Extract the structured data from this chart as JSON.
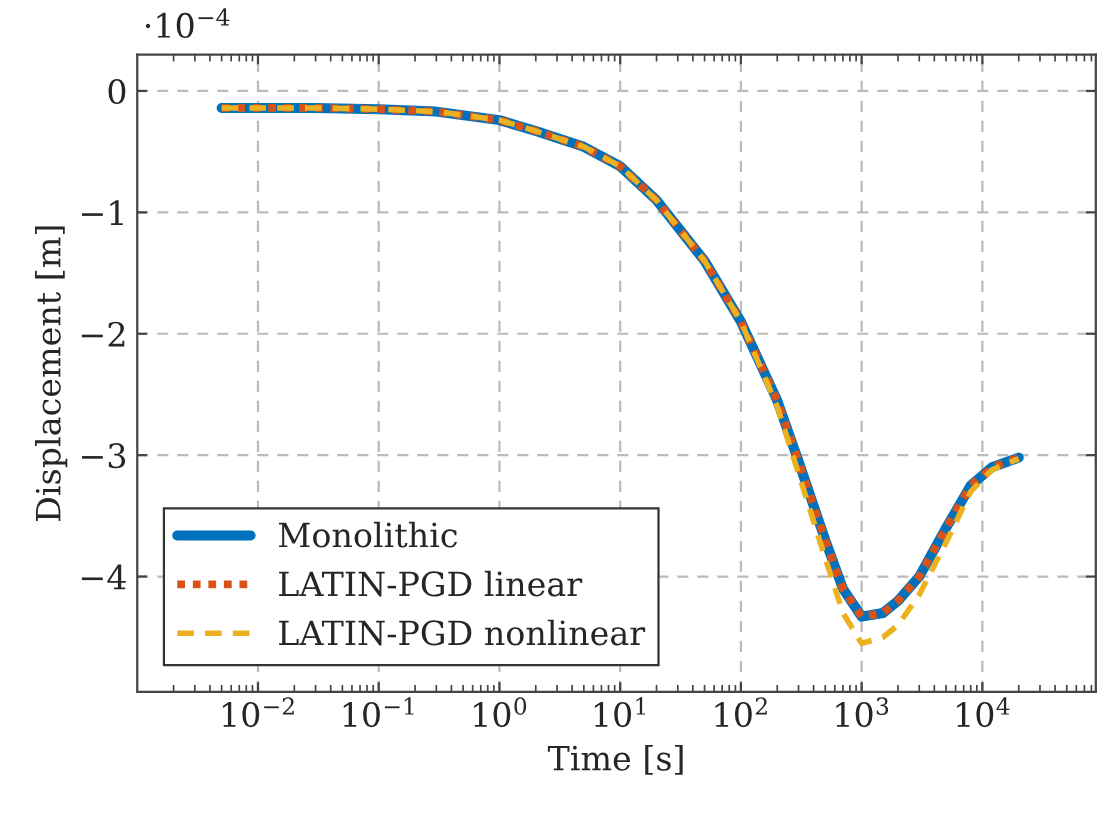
{
  "chart_data": {
    "type": "line",
    "xlabel": "Time [s]",
    "ylabel": "Displacement [m]",
    "annotations": [
      "·10$^{−4}$"
    ],
    "x": [
      0.005,
      0.01,
      0.03,
      0.1,
      0.3,
      1,
      2,
      5,
      10,
      20,
      50,
      100,
      200,
      300,
      500,
      700,
      1000,
      1500,
      2000,
      3000,
      5000,
      8000,
      12000,
      20000
    ],
    "series": [
      {
        "name": "Monolithic",
        "color": "#0072bd",
        "line_style": "solid",
        "values": [
          -0.14,
          -0.14,
          -0.14,
          -0.15,
          -0.17,
          -0.24,
          -0.33,
          -0.46,
          -0.62,
          -0.9,
          -1.4,
          -1.9,
          -2.55,
          -3.05,
          -3.7,
          -4.1,
          -4.33,
          -4.3,
          -4.2,
          -4.0,
          -3.6,
          -3.25,
          -3.1,
          -3.02
        ]
      },
      {
        "name": "LATIN-PGD linear",
        "color": "#d95319",
        "line_style": "dotted",
        "values": [
          -0.14,
          -0.14,
          -0.14,
          -0.15,
          -0.17,
          -0.24,
          -0.33,
          -0.46,
          -0.62,
          -0.9,
          -1.4,
          -1.9,
          -2.55,
          -3.05,
          -3.7,
          -4.1,
          -4.33,
          -4.3,
          -4.2,
          -4.0,
          -3.6,
          -3.25,
          -3.1,
          -3.02
        ]
      },
      {
        "name": "LATIN-PGD nonlinear",
        "color": "#edb120",
        "line_style": "dashed",
        "values": [
          -0.14,
          -0.14,
          -0.14,
          -0.15,
          -0.17,
          -0.24,
          -0.33,
          -0.46,
          -0.62,
          -0.9,
          -1.4,
          -1.9,
          -2.6,
          -3.15,
          -3.85,
          -4.3,
          -4.55,
          -4.5,
          -4.4,
          -4.15,
          -3.72,
          -3.3,
          -3.12,
          -3.03
        ]
      }
    ],
    "log": "x",
    "xlim": [
      0.001,
      87000
    ],
    "ylim": [
      -4.95,
      0.3
    ],
    "xticks": [
      {
        "value": 0.01,
        "label": "10$^{−2}$"
      },
      {
        "value": 0.1,
        "label": "10$^{−1}$"
      },
      {
        "value": 1,
        "label": "10$^{0}$"
      },
      {
        "value": 10,
        "label": "10$^{1}$"
      },
      {
        "value": 100,
        "label": "10$^{2}$"
      },
      {
        "value": 1000,
        "label": "10$^{3}$"
      },
      {
        "value": 10000,
        "label": "10$^{4}$"
      }
    ],
    "yticks": [
      {
        "value": -4,
        "label": "−4"
      },
      {
        "value": -3,
        "label": "−3"
      },
      {
        "value": -2,
        "label": "−2"
      },
      {
        "value": -1,
        "label": "−1"
      },
      0
    ],
    "grid": true,
    "legend": "bottom left"
  }
}
